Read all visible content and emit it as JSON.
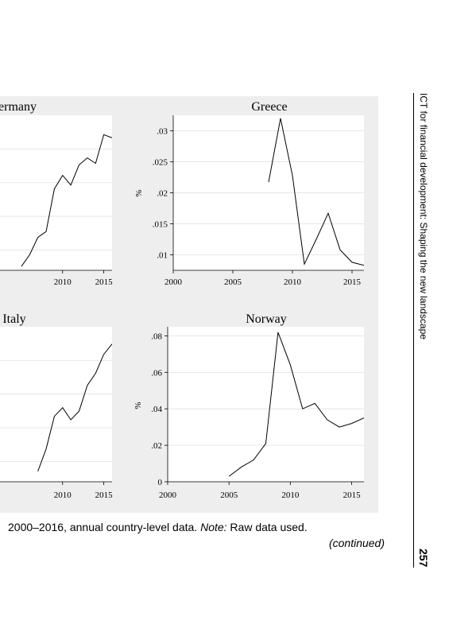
{
  "caption": {
    "text_before": "2000–2016, annual country-level data. ",
    "note_label": "Note:",
    "text_after": " Raw data used.",
    "continued": "(continued)"
  },
  "running_head": "ICT for financial development: Shaping the new landscape",
  "page_number": "257",
  "chart_data": [
    {
      "type": "line",
      "title": "Germany",
      "title_visible": "ermany",
      "xlim": [
        2000,
        2016
      ],
      "ylabel": "",
      "xticks": [
        2010,
        2015
      ],
      "series": [
        {
          "x": [
            2005,
            2006,
            2007,
            2008,
            2009,
            2010,
            2011,
            2012,
            2013,
            2014,
            2015,
            2016
          ],
          "y": [
            0.1,
            0.4,
            0.85,
            1.0,
            2.1,
            2.45,
            2.2,
            2.72,
            2.9,
            2.76,
            3.5,
            3.42
          ]
        }
      ],
      "ylim": [
        0,
        4
      ]
    },
    {
      "type": "line",
      "title": "Greece",
      "xlim": [
        2000,
        2016
      ],
      "ylim": [
        0.0075,
        0.0325
      ],
      "ylabel": "%",
      "xticks": [
        2000,
        2005,
        2010,
        2015
      ],
      "yticks": [
        0.01,
        0.015,
        0.02,
        0.025,
        0.03
      ],
      "ytick_labels": [
        ".01",
        ".015",
        ".02",
        ".025",
        ".03"
      ],
      "series": [
        {
          "x": [
            2008,
            2009,
            2010,
            2011,
            2012,
            2013,
            2014,
            2015,
            2016
          ],
          "y": [
            0.0217,
            0.032,
            0.0228,
            0.0085,
            0.0125,
            0.0167,
            0.0108,
            0.0088,
            0.0083
          ]
        }
      ]
    },
    {
      "type": "line",
      "title": "Italy",
      "xlim": [
        2000,
        2016
      ],
      "ylabel": "",
      "xticks": [
        2010,
        2015
      ],
      "series": [
        {
          "x": [
            2007,
            2008,
            2009,
            2010,
            2011,
            2012,
            2013,
            2014,
            2015,
            2016
          ],
          "y": [
            0.3,
            0.95,
            1.9,
            2.15,
            1.8,
            2.05,
            2.8,
            3.15,
            3.7,
            4.0
          ]
        }
      ],
      "ylim": [
        0,
        4.5
      ]
    },
    {
      "type": "line",
      "title": "Norway",
      "xlim": [
        2000,
        2016
      ],
      "ylim": [
        0,
        0.085
      ],
      "ylabel": "%",
      "xticks": [
        2000,
        2005,
        2010,
        2015
      ],
      "yticks": [
        0,
        0.02,
        0.04,
        0.06,
        0.08
      ],
      "ytick_labels": [
        "0",
        ".02",
        ".04",
        ".06",
        ".08"
      ],
      "series": [
        {
          "x": [
            2005,
            2006,
            2007,
            2008,
            2009,
            2010,
            2011,
            2012,
            2013,
            2014,
            2015,
            2016
          ],
          "y": [
            0.003,
            0.008,
            0.012,
            0.021,
            0.082,
            0.064,
            0.04,
            0.043,
            0.034,
            0.03,
            0.032,
            0.035
          ]
        }
      ]
    }
  ]
}
